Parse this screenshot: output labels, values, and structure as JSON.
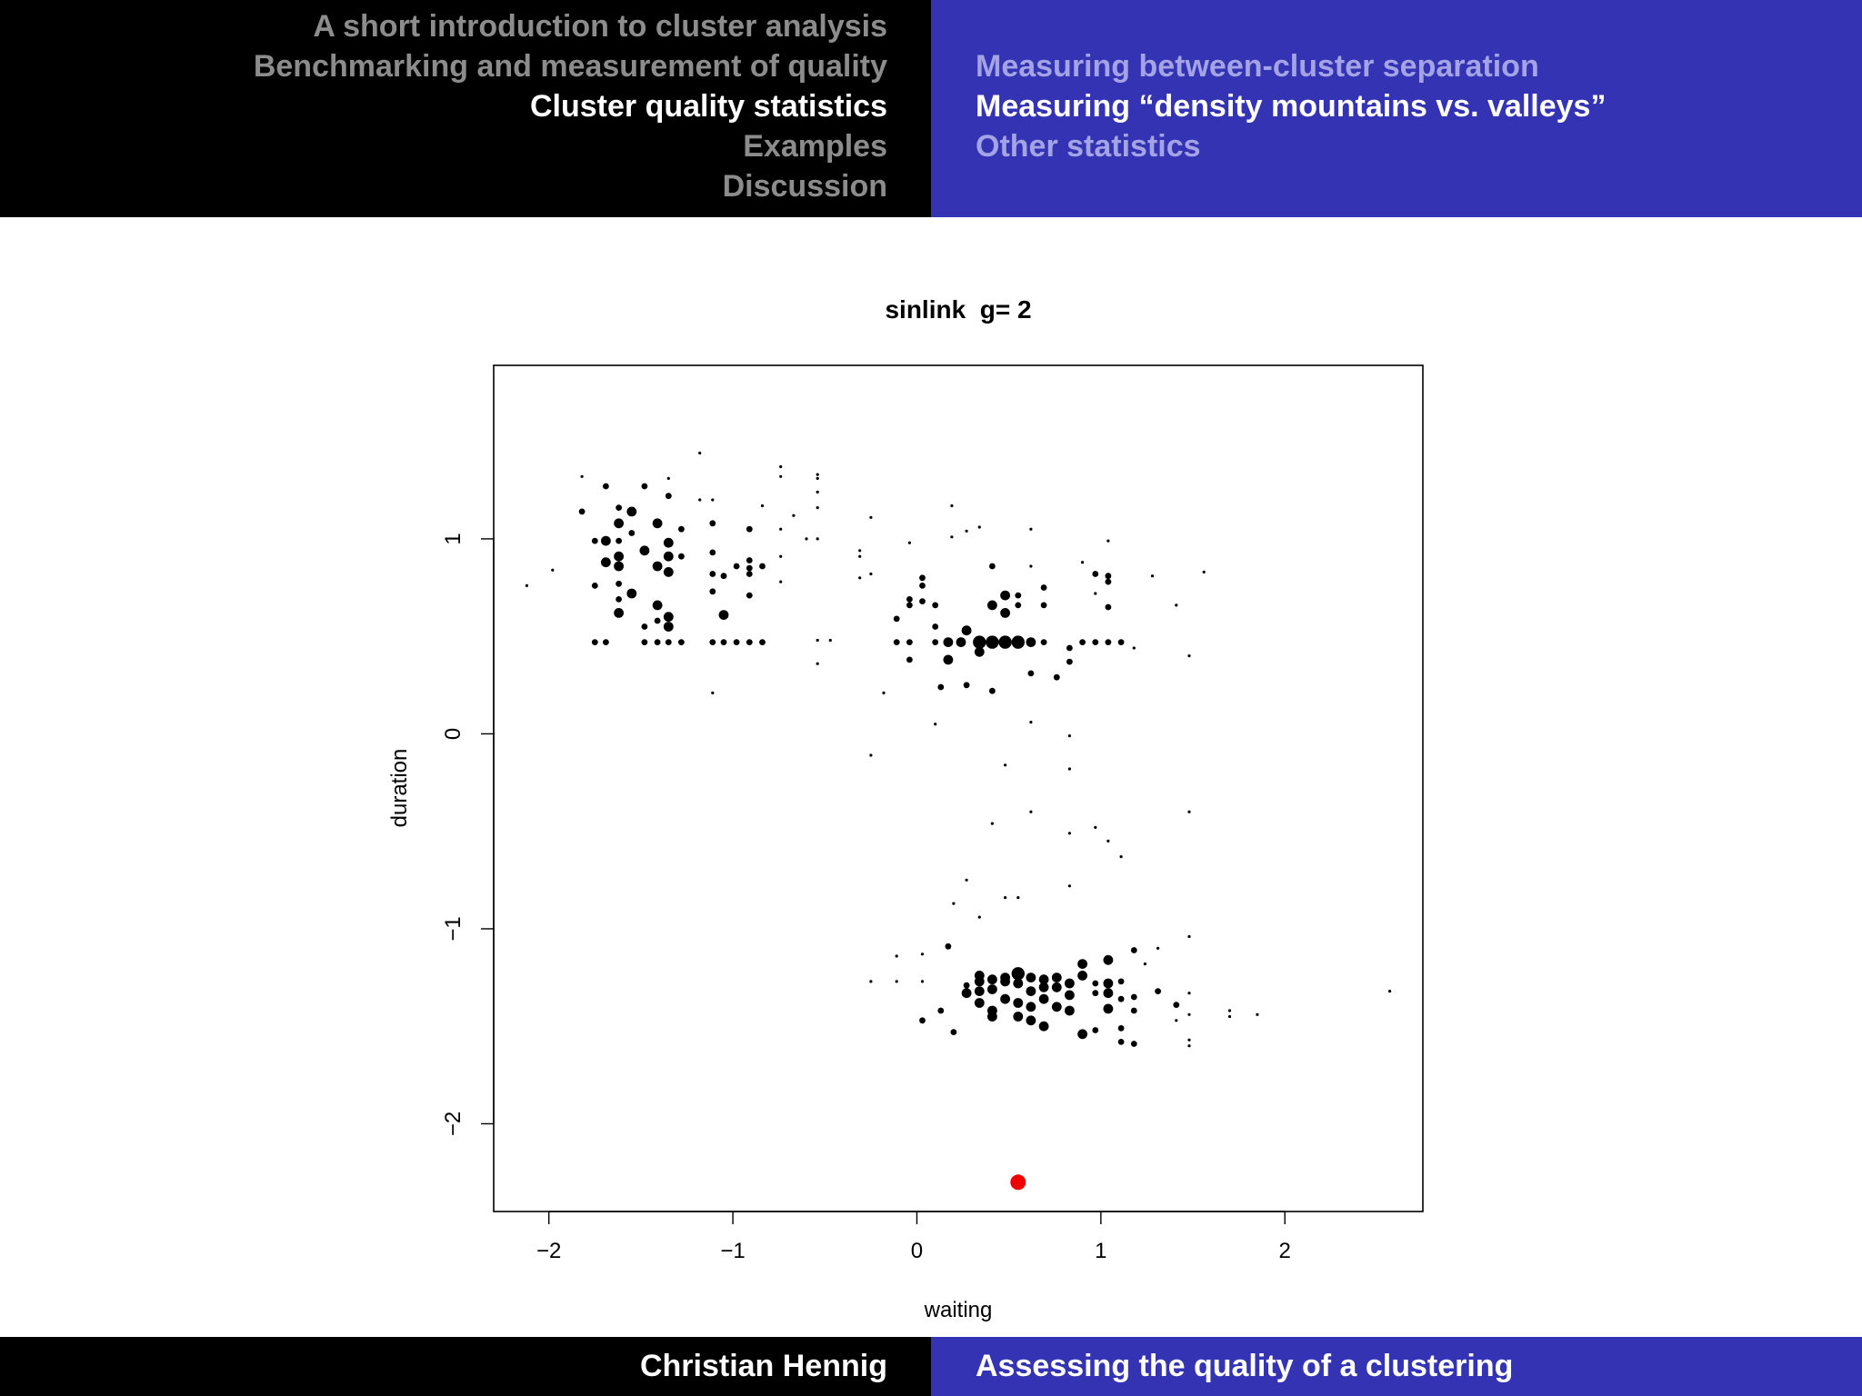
{
  "header": {
    "sections": [
      {
        "label": "A short introduction to cluster analysis",
        "active": false
      },
      {
        "label": "Benchmarking and measurement of quality",
        "active": false
      },
      {
        "label": "Cluster quality statistics",
        "active": true
      },
      {
        "label": "Examples",
        "active": false
      },
      {
        "label": "Discussion",
        "active": false
      }
    ],
    "subsections": [
      {
        "label": "Measuring between-cluster separation",
        "active": false
      },
      {
        "label": "Measuring “density mountains vs. valleys”",
        "active": true
      },
      {
        "label": "Other statistics",
        "active": false
      }
    ]
  },
  "footer": {
    "author": "Christian Hennig",
    "title": "Assessing the quality of a clustering"
  },
  "colors": {
    "header_left_bg": "#000000",
    "header_right_bg": "#3333b3",
    "inactive_section": "#8c8c8c",
    "inactive_subsection": "#a3a3e6",
    "active_text": "#ffffff",
    "point": "#000000",
    "highlight_point": "#ee0000"
  },
  "chart_data": {
    "type": "scatter",
    "title": "sinlink  g= 2",
    "xlabel": "waiting",
    "ylabel": "duration",
    "xlim": [
      -2.3,
      2.75
    ],
    "ylim": [
      -2.45,
      1.89
    ],
    "xticks": [
      -2,
      -1,
      0,
      1,
      2
    ],
    "yticks": [
      -2,
      -1,
      0,
      1
    ],
    "xtick_labels": [
      "−2",
      "−1",
      "0",
      "1",
      "2"
    ],
    "ytick_labels": [
      "−2",
      "−1",
      "0",
      "1"
    ],
    "grid": false,
    "legend": "none",
    "point_size_legend": {
      "1": "small",
      "2": "medium",
      "3": "large",
      "4": "largest"
    },
    "points": [
      [
        -2.12,
        0.76,
        1
      ],
      [
        -1.98,
        0.84,
        1
      ],
      [
        -1.82,
        1.32,
        1
      ],
      [
        -1.82,
        1.14,
        2
      ],
      [
        -1.75,
        0.99,
        2
      ],
      [
        -1.75,
        0.76,
        2
      ],
      [
        -1.69,
        0.99,
        3
      ],
      [
        -1.69,
        0.88,
        3
      ],
      [
        -1.69,
        1.27,
        2
      ],
      [
        -1.62,
        1.16,
        2
      ],
      [
        -1.62,
        1.08,
        3
      ],
      [
        -1.62,
        0.99,
        2
      ],
      [
        -1.62,
        0.91,
        3
      ],
      [
        -1.62,
        0.86,
        3
      ],
      [
        -1.62,
        0.77,
        2
      ],
      [
        -1.62,
        0.69,
        2
      ],
      [
        -1.62,
        0.62,
        3
      ],
      [
        -1.55,
        1.14,
        3
      ],
      [
        -1.55,
        1.03,
        2
      ],
      [
        -1.55,
        0.72,
        3
      ],
      [
        -1.48,
        1.27,
        2
      ],
      [
        -1.48,
        0.94,
        3
      ],
      [
        -1.48,
        0.55,
        2
      ],
      [
        -1.41,
        1.08,
        3
      ],
      [
        -1.41,
        0.86,
        3
      ],
      [
        -1.41,
        0.66,
        3
      ],
      [
        -1.41,
        0.58,
        2
      ],
      [
        -1.35,
        1.31,
        1
      ],
      [
        -1.35,
        1.22,
        2
      ],
      [
        -1.35,
        0.98,
        3
      ],
      [
        -1.35,
        0.91,
        3
      ],
      [
        -1.35,
        0.83,
        3
      ],
      [
        -1.35,
        0.6,
        3
      ],
      [
        -1.35,
        0.55,
        3
      ],
      [
        -1.28,
        1.05,
        2
      ],
      [
        -1.28,
        0.91,
        2
      ],
      [
        -1.18,
        1.44,
        1
      ],
      [
        -1.18,
        1.2,
        1
      ],
      [
        -1.11,
        1.2,
        1
      ],
      [
        -1.11,
        1.08,
        2
      ],
      [
        -1.11,
        0.93,
        2
      ],
      [
        -1.11,
        0.82,
        2
      ],
      [
        -1.11,
        0.73,
        2
      ],
      [
        -1.11,
        0.21,
        1
      ],
      [
        -1.05,
        0.81,
        2
      ],
      [
        -1.05,
        0.61,
        3
      ],
      [
        -0.98,
        0.86,
        2
      ],
      [
        -0.91,
        1.05,
        2
      ],
      [
        -0.91,
        0.89,
        2
      ],
      [
        -0.91,
        0.85,
        2
      ],
      [
        -0.91,
        0.82,
        2
      ],
      [
        -0.91,
        0.71,
        2
      ],
      [
        -0.84,
        1.17,
        1
      ],
      [
        -0.84,
        0.86,
        2
      ],
      [
        -0.74,
        1.37,
        1
      ],
      [
        -0.74,
        1.32,
        1
      ],
      [
        -0.74,
        1.05,
        1
      ],
      [
        -0.74,
        0.91,
        1
      ],
      [
        -0.74,
        0.78,
        1
      ],
      [
        -0.67,
        1.12,
        1
      ],
      [
        -0.6,
        1.0,
        1
      ],
      [
        -0.54,
        1.33,
        1
      ],
      [
        -0.54,
        1.31,
        1
      ],
      [
        -0.54,
        1.24,
        1
      ],
      [
        -0.54,
        1.16,
        1
      ],
      [
        -0.54,
        1.0,
        1
      ],
      [
        -0.54,
        0.48,
        1
      ],
      [
        -0.54,
        0.36,
        1
      ],
      [
        -0.47,
        0.48,
        1
      ],
      [
        -0.31,
        0.94,
        1
      ],
      [
        -0.31,
        0.91,
        1
      ],
      [
        -0.31,
        0.8,
        1
      ],
      [
        -0.25,
        1.11,
        1
      ],
      [
        -0.25,
        0.82,
        1
      ],
      [
        -0.25,
        -0.11,
        1
      ],
      [
        -1.75,
        0.47,
        2
      ],
      [
        -1.69,
        0.47,
        2
      ],
      [
        -1.48,
        0.47,
        2
      ],
      [
        -1.41,
        0.47,
        2
      ],
      [
        -1.35,
        0.47,
        2
      ],
      [
        -1.28,
        0.47,
        2
      ],
      [
        -1.11,
        0.47,
        2
      ],
      [
        -1.05,
        0.47,
        2
      ],
      [
        -0.98,
        0.47,
        2
      ],
      [
        -0.91,
        0.47,
        2
      ],
      [
        -0.84,
        0.47,
        2
      ],
      [
        -0.18,
        0.21,
        1
      ],
      [
        -0.11,
        0.59,
        2
      ],
      [
        -0.11,
        0.47,
        2
      ],
      [
        -0.04,
        0.69,
        2
      ],
      [
        -0.04,
        0.66,
        2
      ],
      [
        -0.04,
        0.47,
        2
      ],
      [
        -0.04,
        0.38,
        2
      ],
      [
        -0.04,
        0.98,
        1
      ],
      [
        0.03,
        0.8,
        2
      ],
      [
        0.03,
        0.76,
        2
      ],
      [
        0.03,
        0.68,
        2
      ],
      [
        0.1,
        0.66,
        2
      ],
      [
        0.1,
        0.55,
        2
      ],
      [
        0.1,
        0.47,
        2
      ],
      [
        0.1,
        0.05,
        1
      ],
      [
        0.13,
        0.24,
        2
      ],
      [
        0.17,
        0.47,
        3
      ],
      [
        0.17,
        0.38,
        3
      ],
      [
        0.19,
        1.17,
        1
      ],
      [
        0.19,
        1.01,
        1
      ],
      [
        0.24,
        0.47,
        3
      ],
      [
        0.27,
        1.04,
        1
      ],
      [
        0.27,
        0.53,
        3
      ],
      [
        0.27,
        0.25,
        2
      ],
      [
        0.34,
        1.06,
        1
      ],
      [
        0.34,
        0.47,
        4
      ],
      [
        0.34,
        0.42,
        3
      ],
      [
        0.41,
        0.86,
        2
      ],
      [
        0.41,
        0.66,
        3
      ],
      [
        0.41,
        0.47,
        4
      ],
      [
        0.41,
        0.22,
        2
      ],
      [
        0.41,
        -0.46,
        1
      ],
      [
        0.48,
        0.71,
        3
      ],
      [
        0.48,
        0.62,
        3
      ],
      [
        0.48,
        0.47,
        4
      ],
      [
        0.48,
        -0.16,
        1
      ],
      [
        0.55,
        0.47,
        4
      ],
      [
        0.55,
        0.71,
        2
      ],
      [
        0.55,
        0.66,
        2
      ],
      [
        0.62,
        1.05,
        1
      ],
      [
        0.62,
        0.86,
        1
      ],
      [
        0.62,
        0.47,
        3
      ],
      [
        0.62,
        0.31,
        2
      ],
      [
        0.62,
        0.06,
        1
      ],
      [
        0.62,
        -0.4,
        1
      ],
      [
        0.69,
        0.75,
        2
      ],
      [
        0.69,
        0.66,
        2
      ],
      [
        0.69,
        0.47,
        2
      ],
      [
        0.76,
        0.29,
        2
      ],
      [
        0.83,
        0.44,
        2
      ],
      [
        0.83,
        0.37,
        2
      ],
      [
        0.83,
        -0.01,
        1
      ],
      [
        0.83,
        -0.18,
        1
      ],
      [
        0.83,
        -0.51,
        1
      ],
      [
        0.9,
        0.88,
        1
      ],
      [
        0.9,
        0.47,
        2
      ],
      [
        0.97,
        0.82,
        2
      ],
      [
        0.97,
        0.72,
        1
      ],
      [
        0.97,
        0.47,
        2
      ],
      [
        1.04,
        0.99,
        1
      ],
      [
        1.04,
        0.81,
        2
      ],
      [
        1.04,
        0.78,
        2
      ],
      [
        1.04,
        0.65,
        2
      ],
      [
        1.04,
        0.47,
        2
      ],
      [
        1.11,
        0.47,
        2
      ],
      [
        1.18,
        0.44,
        1
      ],
      [
        1.28,
        0.81,
        1
      ],
      [
        1.41,
        0.66,
        1
      ],
      [
        1.48,
        0.4,
        1
      ],
      [
        1.56,
        0.83,
        1
      ],
      [
        0.48,
        -0.84,
        1
      ],
      [
        0.55,
        -0.84,
        1
      ],
      [
        0.27,
        -0.75,
        1
      ],
      [
        0.34,
        -0.94,
        1
      ],
      [
        0.2,
        -0.87,
        1
      ],
      [
        0.83,
        -0.78,
        1
      ],
      [
        0.97,
        -0.48,
        1
      ],
      [
        1.04,
        -0.55,
        1
      ],
      [
        1.11,
        -0.63,
        1
      ],
      [
        1.48,
        -0.4,
        1
      ],
      [
        -0.25,
        -1.27,
        1
      ],
      [
        -0.11,
        -1.14,
        1
      ],
      [
        -0.11,
        -1.27,
        1
      ],
      [
        0.03,
        -1.13,
        1
      ],
      [
        0.03,
        -1.27,
        1
      ],
      [
        0.03,
        -1.47,
        2
      ],
      [
        0.13,
        -1.42,
        2
      ],
      [
        0.17,
        -1.09,
        2
      ],
      [
        0.2,
        -1.53,
        2
      ],
      [
        0.27,
        -1.33,
        3
      ],
      [
        0.27,
        -1.29,
        2
      ],
      [
        0.34,
        -1.27,
        3
      ],
      [
        0.34,
        -1.24,
        3
      ],
      [
        0.34,
        -1.38,
        3
      ],
      [
        0.34,
        -1.32,
        3
      ],
      [
        0.41,
        -1.26,
        3
      ],
      [
        0.41,
        -1.31,
        3
      ],
      [
        0.41,
        -1.42,
        3
      ],
      [
        0.41,
        -1.45,
        3
      ],
      [
        0.48,
        -1.27,
        3
      ],
      [
        0.48,
        -1.25,
        3
      ],
      [
        0.48,
        -1.36,
        3
      ],
      [
        0.55,
        -1.23,
        4
      ],
      [
        0.55,
        -1.28,
        3
      ],
      [
        0.55,
        -1.38,
        3
      ],
      [
        0.55,
        -1.45,
        3
      ],
      [
        0.62,
        -1.25,
        3
      ],
      [
        0.62,
        -1.32,
        3
      ],
      [
        0.62,
        -1.4,
        3
      ],
      [
        0.62,
        -1.47,
        3
      ],
      [
        0.69,
        -1.26,
        3
      ],
      [
        0.69,
        -1.3,
        3
      ],
      [
        0.69,
        -1.36,
        3
      ],
      [
        0.69,
        -1.5,
        3
      ],
      [
        0.76,
        -1.25,
        3
      ],
      [
        0.76,
        -1.3,
        3
      ],
      [
        0.76,
        -1.4,
        3
      ],
      [
        0.83,
        -1.28,
        3
      ],
      [
        0.83,
        -1.34,
        3
      ],
      [
        0.83,
        -1.42,
        3
      ],
      [
        0.9,
        -1.18,
        3
      ],
      [
        0.9,
        -1.24,
        3
      ],
      [
        0.9,
        -1.54,
        3
      ],
      [
        0.97,
        -1.28,
        2
      ],
      [
        0.97,
        -1.33,
        2
      ],
      [
        0.97,
        -1.52,
        2
      ],
      [
        1.04,
        -1.16,
        3
      ],
      [
        1.04,
        -1.28,
        3
      ],
      [
        1.04,
        -1.33,
        3
      ],
      [
        1.04,
        -1.41,
        3
      ],
      [
        1.11,
        -1.27,
        2
      ],
      [
        1.11,
        -1.36,
        2
      ],
      [
        1.11,
        -1.51,
        2
      ],
      [
        1.11,
        -1.58,
        2
      ],
      [
        1.18,
        -1.11,
        2
      ],
      [
        1.18,
        -1.35,
        2
      ],
      [
        1.18,
        -1.42,
        2
      ],
      [
        1.18,
        -1.59,
        2
      ],
      [
        1.24,
        -1.18,
        1
      ],
      [
        1.31,
        -1.1,
        1
      ],
      [
        1.31,
        -1.32,
        2
      ],
      [
        1.41,
        -1.39,
        2
      ],
      [
        1.41,
        -1.47,
        1
      ],
      [
        1.48,
        -1.04,
        1
      ],
      [
        1.48,
        -1.33,
        1
      ],
      [
        1.48,
        -1.44,
        1
      ],
      [
        1.48,
        -1.57,
        1
      ],
      [
        1.48,
        -1.6,
        1
      ],
      [
        1.7,
        -1.42,
        1
      ],
      [
        1.7,
        -1.45,
        1
      ],
      [
        1.85,
        -1.44,
        1
      ],
      [
        2.57,
        -1.32,
        1
      ]
    ],
    "highlight_points": [
      [
        0.55,
        -2.3
      ]
    ]
  }
}
